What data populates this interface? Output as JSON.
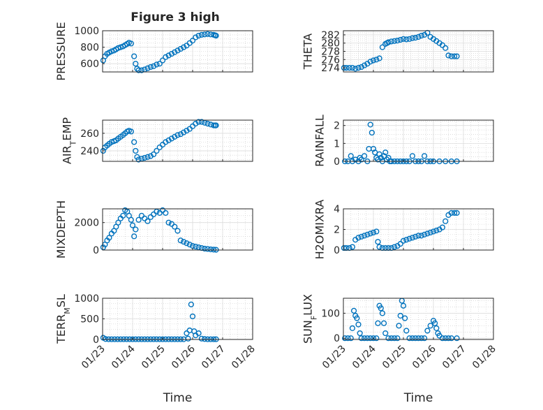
{
  "figure": {
    "title": "Figure 3 high"
  },
  "colors": {
    "marker": "#0072BD",
    "axis": "#262626",
    "grid": "#c8c8c8"
  },
  "chart_data": [
    {
      "type": "scatter",
      "ylabel": "PRESSURE",
      "ylim": [
        500,
        1000
      ],
      "yticks": [
        "600",
        "800",
        "1000"
      ],
      "ytick_values": [
        600,
        800,
        1000
      ],
      "xlim": [
        23,
        28
      ],
      "x": [
        23.02,
        23.08,
        23.15,
        23.22,
        23.3,
        23.38,
        23.45,
        23.52,
        23.6,
        23.68,
        23.75,
        23.82,
        23.88,
        23.95,
        24.05,
        24.1,
        24.15,
        24.2,
        24.3,
        24.4,
        24.5,
        24.6,
        24.7,
        24.8,
        24.9,
        25.0,
        25.1,
        25.2,
        25.3,
        25.4,
        25.5,
        25.6,
        25.7,
        25.8,
        25.9,
        26.0,
        26.1,
        26.2,
        26.3,
        26.4,
        26.5,
        26.6,
        26.7,
        26.75,
        26.78
      ],
      "values": [
        640,
        690,
        720,
        735,
        750,
        760,
        775,
        790,
        800,
        810,
        825,
        840,
        855,
        845,
        690,
        600,
        540,
        520,
        520,
        530,
        545,
        560,
        570,
        590,
        600,
        640,
        680,
        700,
        720,
        740,
        760,
        780,
        800,
        820,
        850,
        880,
        920,
        940,
        950,
        955,
        960,
        955,
        950,
        945,
        940
      ]
    },
    {
      "type": "scatter",
      "ylabel": "THETA",
      "ylim": [
        273,
        283
      ],
      "yticks": [
        "274",
        "276",
        "278",
        "280",
        "282"
      ],
      "ytick_values": [
        274,
        276,
        278,
        280,
        282
      ],
      "xlim": [
        23,
        28
      ],
      "x": [
        23.02,
        23.1,
        23.2,
        23.3,
        23.4,
        23.5,
        23.6,
        23.7,
        23.8,
        23.9,
        24.0,
        24.1,
        24.2,
        24.3,
        24.4,
        24.45,
        24.5,
        24.6,
        24.7,
        24.8,
        24.9,
        25.0,
        25.1,
        25.2,
        25.3,
        25.4,
        25.5,
        25.6,
        25.7,
        25.8,
        25.9,
        26.0,
        26.1,
        26.2,
        26.3,
        26.4,
        26.5,
        26.6,
        26.7,
        26.78
      ],
      "values": [
        274,
        274,
        274,
        274,
        273.8,
        274,
        274.2,
        274.6,
        275,
        275.5,
        275.8,
        276,
        276.3,
        279,
        279.8,
        280,
        280.2,
        280.4,
        280.5,
        280.6,
        280.8,
        281,
        280.9,
        281,
        281.2,
        281.3,
        281.5,
        281.8,
        282,
        282.5,
        281.5,
        281,
        280.5,
        280,
        279.5,
        278.8,
        277,
        276.8,
        276.8,
        276.8
      ]
    },
    {
      "type": "scatter",
      "ylabel": "AIR_TEMP",
      "ylim": [
        228,
        275
      ],
      "yticks": [
        "240",
        "260"
      ],
      "ytick_values": [
        240,
        260
      ],
      "xlim": [
        23,
        28
      ],
      "x": [
        23.02,
        23.08,
        23.15,
        23.22,
        23.3,
        23.38,
        23.45,
        23.52,
        23.6,
        23.68,
        23.75,
        23.82,
        23.88,
        23.95,
        24.05,
        24.1,
        24.15,
        24.2,
        24.3,
        24.4,
        24.5,
        24.6,
        24.7,
        24.8,
        24.9,
        25.0,
        25.1,
        25.2,
        25.3,
        25.4,
        25.5,
        25.6,
        25.7,
        25.8,
        25.9,
        26.0,
        26.1,
        26.2,
        26.3,
        26.4,
        26.5,
        26.6,
        26.7,
        26.75,
        26.78
      ],
      "values": [
        240,
        244,
        246,
        248,
        250,
        251,
        252,
        254,
        256,
        258,
        260,
        262,
        263,
        262,
        250,
        240,
        233,
        230,
        231,
        232,
        233,
        234,
        236,
        240,
        244,
        247,
        250,
        252,
        254,
        256,
        258,
        259,
        261,
        263,
        265,
        268,
        271,
        273,
        273,
        272,
        271,
        270,
        269,
        269,
        269
      ]
    },
    {
      "type": "scatter",
      "ylabel": "RAINFALL",
      "ylim": [
        0,
        2.3
      ],
      "yticks": [
        "0",
        "1",
        "2"
      ],
      "ytick_values": [
        0,
        1,
        2
      ],
      "xlim": [
        23,
        28
      ],
      "x": [
        23.05,
        23.15,
        23.25,
        23.3,
        23.4,
        23.5,
        23.55,
        23.6,
        23.7,
        23.8,
        23.85,
        23.9,
        23.95,
        24.0,
        24.05,
        24.1,
        24.15,
        24.2,
        24.25,
        24.3,
        24.35,
        24.4,
        24.45,
        24.5,
        24.55,
        24.6,
        24.7,
        24.8,
        24.9,
        25.0,
        25.1,
        25.2,
        25.3,
        25.4,
        25.5,
        25.6,
        25.7,
        25.8,
        25.9,
        26.0,
        26.2,
        26.4,
        26.6,
        26.78
      ],
      "values": [
        0,
        0,
        0.3,
        0,
        0.1,
        0,
        0.2,
        0.1,
        0.3,
        0,
        0.7,
        2.05,
        1.6,
        0.7,
        0.5,
        0.2,
        0.1,
        0.4,
        0.2,
        0,
        0.3,
        0.5,
        0.1,
        0.2,
        0,
        0,
        0,
        0,
        0,
        0,
        0,
        0,
        0.3,
        0,
        0,
        0,
        0.3,
        0,
        0,
        0,
        0,
        0,
        0,
        0
      ]
    },
    {
      "type": "scatter",
      "ylabel": "MIXDEPTH",
      "ylim": [
        0,
        3000
      ],
      "yticks": [
        "0",
        "2000"
      ],
      "ytick_values": [
        0,
        2000
      ],
      "xlim": [
        23,
        28
      ],
      "x": [
        23.02,
        23.08,
        23.15,
        23.22,
        23.3,
        23.38,
        23.45,
        23.52,
        23.6,
        23.68,
        23.75,
        23.82,
        23.88,
        23.95,
        24.0,
        24.05,
        24.1,
        24.2,
        24.3,
        24.4,
        24.5,
        24.6,
        24.7,
        24.8,
        24.9,
        25.0,
        25.1,
        25.2,
        25.3,
        25.4,
        25.5,
        25.6,
        25.7,
        25.8,
        25.9,
        26.0,
        26.1,
        26.2,
        26.3,
        26.4,
        26.5,
        26.6,
        26.7,
        26.78
      ],
      "values": [
        200,
        400,
        700,
        900,
        1200,
        1400,
        1700,
        2000,
        2300,
        2500,
        2900,
        2800,
        2500,
        2200,
        1800,
        1000,
        1500,
        2200,
        2500,
        2300,
        2100,
        2400,
        2600,
        2800,
        2700,
        2900,
        2700,
        2000,
        1900,
        1700,
        1400,
        700,
        600,
        500,
        400,
        300,
        250,
        200,
        150,
        100,
        80,
        50,
        30,
        20
      ]
    },
    {
      "type": "scatter",
      "ylabel": "H2OMIXRA",
      "ylim": [
        0,
        4
      ],
      "yticks": [
        "0",
        "2",
        "4"
      ],
      "ytick_values": [
        0,
        2,
        4
      ],
      "xlim": [
        23,
        28
      ],
      "x": [
        23.02,
        23.1,
        23.2,
        23.3,
        23.4,
        23.5,
        23.6,
        23.7,
        23.8,
        23.9,
        24.0,
        24.1,
        24.15,
        24.2,
        24.3,
        24.4,
        24.5,
        24.6,
        24.7,
        24.8,
        24.9,
        25.0,
        25.1,
        25.2,
        25.3,
        25.4,
        25.5,
        25.6,
        25.7,
        25.8,
        25.9,
        26.0,
        26.1,
        26.2,
        26.3,
        26.4,
        26.5,
        26.6,
        26.7,
        26.78
      ],
      "values": [
        0.2,
        0.2,
        0.2,
        0.3,
        1.0,
        1.2,
        1.3,
        1.4,
        1.5,
        1.6,
        1.7,
        1.8,
        0.8,
        0.3,
        0.2,
        0.2,
        0.2,
        0.2,
        0.3,
        0.4,
        0.6,
        0.9,
        1.0,
        1.1,
        1.2,
        1.3,
        1.4,
        1.4,
        1.5,
        1.6,
        1.7,
        1.8,
        1.9,
        2.0,
        2.2,
        2.8,
        3.4,
        3.6,
        3.6,
        3.6
      ]
    },
    {
      "type": "scatter",
      "ylabel": "TERR_MSL",
      "ylim": [
        0,
        1000
      ],
      "yticks": [
        "0",
        "500",
        "1000"
      ],
      "ytick_values": [
        0,
        500,
        1000
      ],
      "xlim": [
        23,
        28
      ],
      "x": [
        23.02,
        23.1,
        23.2,
        23.3,
        23.4,
        23.5,
        23.6,
        23.7,
        23.8,
        23.9,
        24.0,
        24.1,
        24.2,
        24.3,
        24.4,
        24.5,
        24.6,
        24.7,
        24.8,
        24.9,
        25.0,
        25.1,
        25.2,
        25.3,
        25.4,
        25.5,
        25.6,
        25.7,
        25.8,
        25.85,
        25.9,
        25.95,
        26.0,
        26.05,
        26.1,
        26.2,
        26.3,
        26.4,
        26.5,
        26.6,
        26.7,
        26.78
      ],
      "values": [
        40,
        10,
        5,
        5,
        5,
        5,
        5,
        5,
        5,
        5,
        5,
        5,
        5,
        5,
        5,
        5,
        5,
        5,
        5,
        5,
        5,
        5,
        5,
        5,
        5,
        5,
        5,
        5,
        150,
        20,
        220,
        850,
        560,
        200,
        100,
        150,
        20,
        10,
        5,
        5,
        5,
        5
      ]
    },
    {
      "type": "scatter",
      "ylabel": "SUN_FLUX",
      "ylim": [
        -5,
        160
      ],
      "yticks": [
        "0",
        "100"
      ],
      "ytick_values": [
        0,
        100
      ],
      "xlim": [
        23,
        28
      ],
      "x": [
        23.05,
        23.15,
        23.25,
        23.3,
        23.35,
        23.4,
        23.45,
        23.5,
        23.55,
        23.6,
        23.7,
        23.8,
        23.9,
        24.0,
        24.1,
        24.15,
        24.2,
        24.25,
        24.3,
        24.35,
        24.4,
        24.5,
        24.6,
        24.7,
        24.8,
        24.85,
        24.9,
        24.95,
        25.0,
        25.05,
        25.1,
        25.2,
        25.3,
        25.4,
        25.5,
        25.6,
        25.7,
        25.8,
        25.9,
        26.0,
        26.05,
        26.1,
        26.15,
        26.2,
        26.3,
        26.4,
        26.5,
        26.6,
        26.78
      ],
      "values": [
        0,
        0,
        0,
        40,
        110,
        90,
        80,
        55,
        20,
        0,
        0,
        0,
        0,
        0,
        0,
        60,
        130,
        120,
        100,
        60,
        20,
        0,
        0,
        0,
        0,
        50,
        90,
        150,
        130,
        80,
        30,
        0,
        0,
        0,
        0,
        0,
        0,
        30,
        50,
        70,
        60,
        40,
        20,
        10,
        0,
        0,
        0,
        0,
        0
      ]
    }
  ],
  "x_axis": {
    "label": "Time",
    "ticks": [
      "01/23",
      "01/24",
      "01/25",
      "01/26",
      "01/27",
      "01/28"
    ],
    "tick_values": [
      23,
      24,
      25,
      26,
      27,
      28
    ]
  }
}
